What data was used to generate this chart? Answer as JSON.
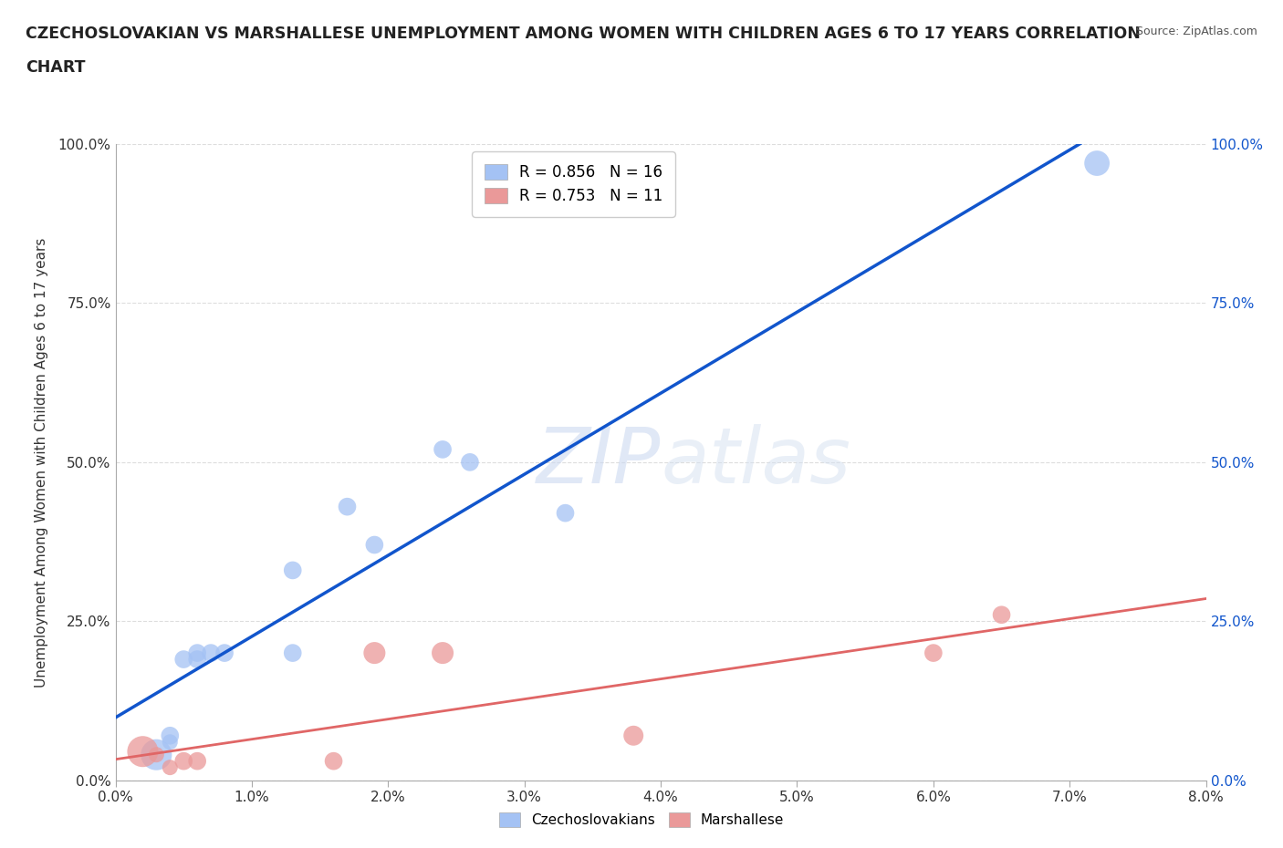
{
  "title_line1": "CZECHOSLOVAKIAN VS MARSHALLESE UNEMPLOYMENT AMONG WOMEN WITH CHILDREN AGES 6 TO 17 YEARS CORRELATION",
  "title_line2": "CHART",
  "source": "Source: ZipAtlas.com",
  "ylabel_label": "Unemployment Among Women with Children Ages 6 to 17 years",
  "xlim": [
    0.0,
    0.08
  ],
  "ylim": [
    0.0,
    1.0
  ],
  "czech_color": "#a4c2f4",
  "marsh_color": "#ea9999",
  "czech_line_color": "#1155cc",
  "marsh_line_color": "#e06666",
  "czech_R": 0.856,
  "czech_N": 16,
  "marsh_R": 0.753,
  "marsh_N": 11,
  "czech_points": [
    [
      0.003,
      0.04
    ],
    [
      0.004,
      0.07
    ],
    [
      0.004,
      0.06
    ],
    [
      0.005,
      0.19
    ],
    [
      0.006,
      0.2
    ],
    [
      0.006,
      0.19
    ],
    [
      0.007,
      0.2
    ],
    [
      0.008,
      0.2
    ],
    [
      0.013,
      0.2
    ],
    [
      0.013,
      0.33
    ],
    [
      0.017,
      0.43
    ],
    [
      0.019,
      0.37
    ],
    [
      0.024,
      0.52
    ],
    [
      0.026,
      0.5
    ],
    [
      0.033,
      0.42
    ],
    [
      0.072,
      0.97
    ]
  ],
  "marsh_points": [
    [
      0.002,
      0.045
    ],
    [
      0.003,
      0.04
    ],
    [
      0.004,
      0.02
    ],
    [
      0.005,
      0.03
    ],
    [
      0.006,
      0.03
    ],
    [
      0.016,
      0.03
    ],
    [
      0.019,
      0.2
    ],
    [
      0.024,
      0.2
    ],
    [
      0.038,
      0.07
    ],
    [
      0.06,
      0.2
    ],
    [
      0.065,
      0.26
    ]
  ],
  "czech_sizes": [
    600,
    200,
    150,
    200,
    200,
    200,
    200,
    200,
    200,
    200,
    200,
    200,
    200,
    200,
    200,
    400
  ],
  "marsh_sizes": [
    600,
    150,
    150,
    200,
    200,
    200,
    300,
    300,
    250,
    200,
    200
  ],
  "background_color": "#ffffff",
  "grid_color": "#dddddd",
  "watermark_zip": "ZIP",
  "watermark_atlas": "atlas",
  "legend_labels": [
    "Czechoslovakians",
    "Marshallese"
  ],
  "right_ytick_color": "#1155cc"
}
